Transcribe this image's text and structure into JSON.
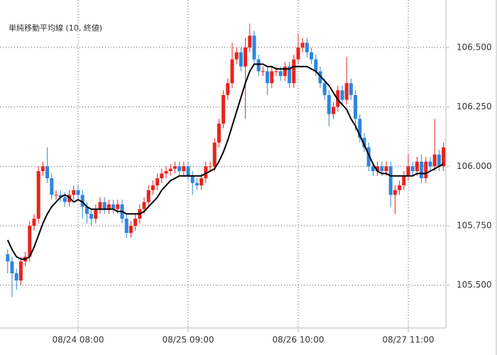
{
  "chart_data": {
    "type": "candlestick",
    "categories": [
      null,
      null,
      null,
      null,
      null,
      null,
      null,
      null,
      null,
      null,
      null,
      null,
      null,
      null,
      null,
      null,
      "08/24 08:00",
      null,
      null,
      null,
      null,
      null,
      null,
      null,
      null,
      null,
      null,
      null,
      null,
      null,
      null,
      null,
      null,
      null,
      null,
      null,
      null,
      null,
      null,
      null,
      null,
      "08/25 09:00",
      null,
      null,
      null,
      null,
      null,
      null,
      null,
      null,
      null,
      null,
      null,
      null,
      null,
      null,
      null,
      null,
      null,
      null,
      null,
      null,
      null,
      null,
      null,
      null,
      "08/26 10:00",
      null,
      null,
      null,
      null,
      null,
      null,
      null,
      null,
      null,
      null,
      null,
      null,
      null,
      null,
      null,
      null,
      null,
      null,
      null,
      null,
      null,
      null,
      null,
      null,
      "08/27 11:00",
      null,
      null,
      null,
      null,
      null,
      null,
      null,
      null
    ],
    "open": [
      105.63,
      105.6,
      105.55,
      105.52,
      105.6,
      105.62,
      105.75,
      105.78,
      105.98,
      106.0,
      105.95,
      105.88,
      105.88,
      105.87,
      105.85,
      105.88,
      105.9,
      105.88,
      105.83,
      105.8,
      105.78,
      105.82,
      105.85,
      105.82,
      105.84,
      105.82,
      105.84,
      105.78,
      105.72,
      105.75,
      105.78,
      105.82,
      105.85,
      105.9,
      105.92,
      105.95,
      105.97,
      105.98,
      105.99,
      106.0,
      105.98,
      106.0,
      105.96,
      105.93,
      105.92,
      105.95,
      106.0,
      106.0,
      106.1,
      106.18,
      106.3,
      106.35,
      106.45,
      106.48,
      106.42,
      106.5,
      106.55,
      106.45,
      106.4,
      106.4,
      106.35,
      106.4,
      106.4,
      106.38,
      106.42,
      106.35,
      106.45,
      106.5,
      106.52,
      106.48,
      106.45,
      106.4,
      106.35,
      106.3,
      106.22,
      106.25,
      106.32,
      106.28,
      106.35,
      106.3,
      106.2,
      106.12,
      106.08,
      106.0,
      105.98,
      106.0,
      105.98,
      106.0,
      105.88,
      105.9,
      105.92,
      105.96,
      106.0,
      105.98,
      106.02,
      105.95,
      106.02,
      106.0,
      106.05,
      106.0
    ],
    "high": [
      105.65,
      105.62,
      105.57,
      105.62,
      105.64,
      105.77,
      105.8,
      106.0,
      106.02,
      106.08,
      105.97,
      105.9,
      105.9,
      105.89,
      105.9,
      105.92,
      105.92,
      105.9,
      105.85,
      105.82,
      105.84,
      105.87,
      105.87,
      105.86,
      105.86,
      105.86,
      105.86,
      105.8,
      105.77,
      105.8,
      105.84,
      105.87,
      105.92,
      105.94,
      105.97,
      105.99,
      106.0,
      106.01,
      106.02,
      106.02,
      106.02,
      106.02,
      105.98,
      105.95,
      105.97,
      106.02,
      106.02,
      106.12,
      106.2,
      106.32,
      106.37,
      106.52,
      106.5,
      106.5,
      106.54,
      106.6,
      106.57,
      106.47,
      106.42,
      106.42,
      106.42,
      106.42,
      106.42,
      106.44,
      106.44,
      106.47,
      106.56,
      106.54,
      106.54,
      106.5,
      106.47,
      106.42,
      106.37,
      106.32,
      106.27,
      106.34,
      106.34,
      106.46,
      106.37,
      106.32,
      106.22,
      106.14,
      106.1,
      106.02,
      106.02,
      106.02,
      106.02,
      106.02,
      105.92,
      105.94,
      105.98,
      106.05,
      106.02,
      106.04,
      106.05,
      106.04,
      106.04,
      106.2,
      106.07,
      106.1
    ],
    "low": [
      105.55,
      105.45,
      105.48,
      105.5,
      105.58,
      105.6,
      105.73,
      105.76,
      105.96,
      105.93,
      105.86,
      105.86,
      105.85,
      105.83,
      105.83,
      105.86,
      105.86,
      105.78,
      105.76,
      105.75,
      105.76,
      105.8,
      105.8,
      105.8,
      105.8,
      105.8,
      105.76,
      105.7,
      105.7,
      105.73,
      105.76,
      105.8,
      105.83,
      105.88,
      105.9,
      105.93,
      105.95,
      105.96,
      105.97,
      105.96,
      105.96,
      105.94,
      105.88,
      105.9,
      105.9,
      105.93,
      105.98,
      105.98,
      106.08,
      106.16,
      106.28,
      106.33,
      106.43,
      106.4,
      106.2,
      106.48,
      106.43,
      106.38,
      106.38,
      106.3,
      106.33,
      106.38,
      106.36,
      106.36,
      106.33,
      106.33,
      106.43,
      106.48,
      106.46,
      106.43,
      106.38,
      106.33,
      106.28,
      106.17,
      106.2,
      106.23,
      106.26,
      106.26,
      106.28,
      106.15,
      106.1,
      106.06,
      105.98,
      105.96,
      105.96,
      105.96,
      105.96,
      105.83,
      105.8,
      105.88,
      105.9,
      105.94,
      105.96,
      105.96,
      105.93,
      105.93,
      105.98,
      105.98,
      105.98,
      105.98
    ],
    "close": [
      105.6,
      105.55,
      105.52,
      105.6,
      105.62,
      105.75,
      105.78,
      105.98,
      106.0,
      105.95,
      105.88,
      105.88,
      105.87,
      105.85,
      105.88,
      105.9,
      105.88,
      105.83,
      105.8,
      105.78,
      105.82,
      105.85,
      105.82,
      105.84,
      105.82,
      105.84,
      105.78,
      105.72,
      105.75,
      105.78,
      105.82,
      105.85,
      105.9,
      105.92,
      105.95,
      105.97,
      105.98,
      105.99,
      106.0,
      105.98,
      106.0,
      105.96,
      105.93,
      105.92,
      105.95,
      106.0,
      106.0,
      106.1,
      106.18,
      106.3,
      106.35,
      106.45,
      106.48,
      106.42,
      106.5,
      106.55,
      106.45,
      106.4,
      106.4,
      106.35,
      106.4,
      106.4,
      106.38,
      106.42,
      106.35,
      106.45,
      106.5,
      106.52,
      106.48,
      106.45,
      106.4,
      106.35,
      106.3,
      106.22,
      106.25,
      106.32,
      106.28,
      106.35,
      106.3,
      106.2,
      106.12,
      106.08,
      106.0,
      105.98,
      106.0,
      105.98,
      106.0,
      105.88,
      105.9,
      105.92,
      105.96,
      106.0,
      105.98,
      106.02,
      105.95,
      106.02,
      106.0,
      106.05,
      106.0,
      106.08
    ],
    "up_color": "#e8231e",
    "down_color": "#2e86de",
    "series": [
      {
        "name": "単純移動平均線 (10, 終値)",
        "color": "#000000",
        "values": [
          105.69,
          105.65,
          105.62,
          105.61,
          105.61,
          105.62,
          105.66,
          105.71,
          105.76,
          105.8,
          105.83,
          105.85,
          105.87,
          105.88,
          105.87,
          105.85,
          105.86,
          105.85,
          105.83,
          105.82,
          105.82,
          105.82,
          105.82,
          105.82,
          105.82,
          105.81,
          105.81,
          105.8,
          105.8,
          105.8,
          105.8,
          105.81,
          105.83,
          105.85,
          105.87,
          105.9,
          105.92,
          105.94,
          105.95,
          105.96,
          105.96,
          105.96,
          105.96,
          105.96,
          105.96,
          105.97,
          105.98,
          105.99,
          106.02,
          106.06,
          106.11,
          106.17,
          106.23,
          106.29,
          106.35,
          106.4,
          106.43,
          106.43,
          106.43,
          106.42,
          106.42,
          106.41,
          106.41,
          106.41,
          106.41,
          106.42,
          106.42,
          106.42,
          106.42,
          106.41,
          106.4,
          106.38,
          106.36,
          106.34,
          106.31,
          106.28,
          106.26,
          106.24,
          106.2,
          106.17,
          106.13,
          106.09,
          106.05,
          106.01,
          105.98,
          105.97,
          105.97,
          105.96,
          105.96,
          105.96,
          105.96,
          105.96,
          105.96,
          105.97,
          105.97,
          105.97,
          105.98,
          105.99,
          106.0,
          106.01
        ]
      }
    ],
    "ylim": [
      105.32,
      106.67
    ],
    "yticks": [
      {
        "value": 105.5,
        "label": "105.500"
      },
      {
        "value": 105.75,
        "label": "105.750"
      },
      {
        "value": 106.0,
        "label": "106.000"
      },
      {
        "value": 106.25,
        "label": "106.250"
      },
      {
        "value": 106.5,
        "label": "106.500"
      }
    ],
    "grid": true
  }
}
